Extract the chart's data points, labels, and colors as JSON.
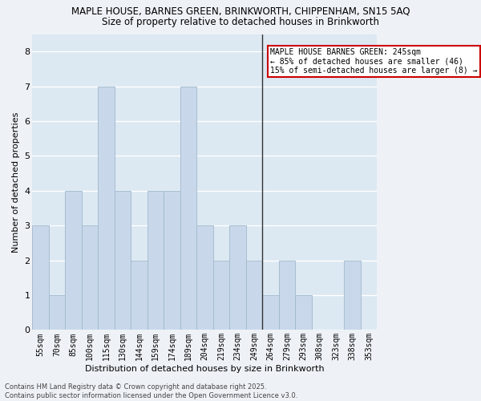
{
  "title_line1": "MAPLE HOUSE, BARNES GREEN, BRINKWORTH, CHIPPENHAM, SN15 5AQ",
  "title_line2": "Size of property relative to detached houses in Brinkworth",
  "xlabel": "Distribution of detached houses by size in Brinkworth",
  "ylabel": "Number of detached properties",
  "categories": [
    "55sqm",
    "70sqm",
    "85sqm",
    "100sqm",
    "115sqm",
    "130sqm",
    "144sqm",
    "159sqm",
    "174sqm",
    "189sqm",
    "204sqm",
    "219sqm",
    "234sqm",
    "249sqm",
    "264sqm",
    "279sqm",
    "293sqm",
    "308sqm",
    "323sqm",
    "338sqm",
    "353sqm"
  ],
  "values": [
    3,
    1,
    4,
    3,
    7,
    4,
    2,
    4,
    4,
    7,
    3,
    2,
    3,
    2,
    1,
    2,
    1,
    0,
    0,
    2,
    0
  ],
  "bar_color": "#c8d8ea",
  "bar_edge_color": "#a0b8cc",
  "vline_x_index": 13.5,
  "vline_color": "#333333",
  "annotation_text": "MAPLE HOUSE BARNES GREEN: 245sqm\n← 85% of detached houses are smaller (46)\n15% of semi-detached houses are larger (8) →",
  "annotation_box_color": "#cc0000",
  "ylim": [
    0,
    8.5
  ],
  "yticks": [
    0,
    1,
    2,
    3,
    4,
    5,
    6,
    7,
    8
  ],
  "footer_line1": "Contains HM Land Registry data © Crown copyright and database right 2025.",
  "footer_line2": "Contains public sector information licensed under the Open Government Licence v3.0.",
  "background_color": "#eef2f7",
  "grid_color": "#ffffff",
  "axis_bg_color": "#dce8f2",
  "title_fontsize": 8.5,
  "subtitle_fontsize": 8.5,
  "ylabel_fontsize": 8,
  "xlabel_fontsize": 8,
  "tick_fontsize": 7,
  "footer_fontsize": 6
}
